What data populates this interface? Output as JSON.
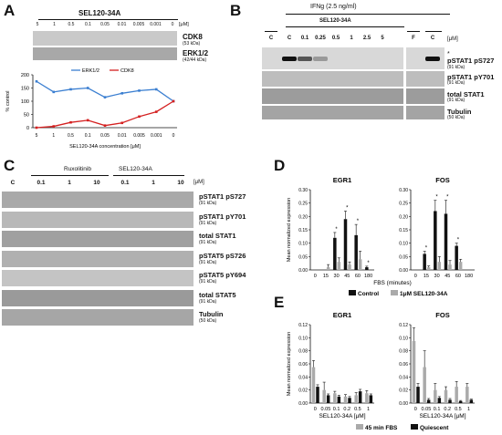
{
  "panels": {
    "A": {
      "label": "A",
      "header": "SEL120-34A",
      "unit": "[μM]",
      "conc": [
        "5",
        "1",
        "0.5",
        "0.1",
        "0.05",
        "0.01",
        "0.005",
        "0.001",
        "0"
      ],
      "bands": [
        {
          "name": "CDK8",
          "kda": "(53 kDa)"
        },
        {
          "name": "ERK1/2",
          "kda": "(42/44 kDa)"
        }
      ],
      "chart": {
        "ylabel": "% control",
        "xlabel": "SEL120-34A concentration [μM]",
        "legend": [
          "ERK1/2",
          "CDK8"
        ],
        "yticks": [
          "0",
          "50",
          "100",
          "150",
          "200"
        ]
      }
    },
    "B": {
      "label": "B",
      "treatment": "IFNg (2.5 ng/ml)",
      "header": "SEL120-34A",
      "unit": "[μM]",
      "lanes": [
        "C",
        "C",
        "0.1",
        "0.25",
        "0.5",
        "1",
        "2.5",
        "5",
        "F",
        "C"
      ],
      "asterisk": "*",
      "bands": [
        {
          "name": "pSTAT1 pS727",
          "kda": "(91 kDa)"
        },
        {
          "name": "pSTAT1 pY701",
          "kda": "(91 kDa)"
        },
        {
          "name": "total STAT1",
          "kda": "(91 kDa)"
        },
        {
          "name": "Tubulin",
          "kda": "(50 kDa)"
        }
      ]
    },
    "C": {
      "label": "C",
      "group1": "Ruxolitinib",
      "group2": "SEL120-34A",
      "unit": "[μM]",
      "lanes": [
        "C",
        "0.1",
        "1",
        "10",
        "0.1",
        "1",
        "10"
      ],
      "bands": [
        {
          "name": "pSTAT1 pS727",
          "kda": "(91 kDa)"
        },
        {
          "name": "pSTAT1 pY701",
          "kda": "(91 kDa)"
        },
        {
          "name": "total STAT1",
          "kda": "(91 kDa)"
        },
        {
          "name": "pSTAT5 pS726",
          "kda": "(91 kDa)"
        },
        {
          "name": "pSTAT5 pY694",
          "kda": "(91 kDa)"
        },
        {
          "name": "total STAT5",
          "kda": "(91 kDa)"
        },
        {
          "name": "Tubulin",
          "kda": "(50 kDa)"
        }
      ]
    },
    "D": {
      "label": "D",
      "ylabel": "Mean normalized expression",
      "xlabel": "FBS (minutes)",
      "legend": [
        "Control",
        "1μM SEL120-34A"
      ],
      "yticks": [
        "0.00",
        "0.05",
        "0.10",
        "0.15",
        "0.20",
        "0.25",
        "0.30"
      ]
    },
    "E": {
      "label": "E",
      "ylabel": "Mean normalized expression",
      "xlabel": "SEL120-34A [μM]",
      "legend": [
        "45 min FBS",
        "Quiescent"
      ],
      "yticks": [
        "0.00",
        "0.02",
        "0.04",
        "0.06",
        "0.08",
        "0.10",
        "0.12"
      ]
    }
  },
  "chart_data": [
    {
      "type": "line",
      "panel": "A",
      "categories": [
        "5",
        "1",
        "0.5",
        "0.1",
        "0.05",
        "0.01",
        "0.005",
        "0.001",
        "0"
      ],
      "series": [
        {
          "name": "ERK1/2",
          "color": "#3b7fd1",
          "values": [
            175,
            135,
            145,
            150,
            115,
            130,
            140,
            145,
            100
          ]
        },
        {
          "name": "CDK8",
          "color": "#d42020",
          "values": [
            0,
            5,
            20,
            28,
            8,
            18,
            42,
            60,
            100
          ]
        }
      ],
      "xlabel": "SEL120-34A concentration [μM]",
      "ylabel": "% control",
      "ylim": [
        0,
        200
      ]
    },
    {
      "type": "bar",
      "panel": "D",
      "title": "EGR1",
      "categories": [
        "0",
        "15",
        "30",
        "45",
        "60",
        "180"
      ],
      "series": [
        {
          "name": "Control",
          "color": "#111111",
          "values": [
            0.0,
            0.0,
            0.12,
            0.19,
            0.13,
            0.01
          ]
        },
        {
          "name": "1μM SEL120-34A",
          "color": "#aaaaaa",
          "values": [
            0.0,
            0.01,
            0.03,
            0.02,
            0.04,
            0.0
          ]
        }
      ],
      "errors": [
        [
          0,
          0,
          0.02,
          0.03,
          0.04,
          0.004
        ],
        [
          0,
          0.01,
          0.015,
          0.01,
          0.03,
          0
        ]
      ],
      "significance": [
        "",
        "",
        "*",
        "*",
        "*",
        "*"
      ],
      "xlabel": "FBS (minutes)",
      "ylabel": "Mean normalized expression",
      "ylim": [
        0,
        0.3
      ]
    },
    {
      "type": "bar",
      "panel": "D",
      "title": "FOS",
      "categories": [
        "0",
        "15",
        "30",
        "45",
        "60",
        "180"
      ],
      "series": [
        {
          "name": "Control",
          "color": "#111111",
          "values": [
            0.0,
            0.06,
            0.22,
            0.21,
            0.09,
            0.0
          ]
        },
        {
          "name": "1μM SEL120-34A",
          "color": "#aaaaaa",
          "values": [
            0.0,
            0.01,
            0.03,
            0.02,
            0.03,
            0.0
          ]
        }
      ],
      "errors": [
        [
          0,
          0.01,
          0.04,
          0.05,
          0.01,
          0
        ],
        [
          0,
          0.005,
          0.02,
          0.015,
          0.01,
          0
        ]
      ],
      "significance": [
        "",
        "*",
        "*",
        "*",
        "*",
        ""
      ],
      "xlabel": "FBS (minutes)",
      "ylabel": "",
      "ylim": [
        0,
        0.3
      ]
    },
    {
      "type": "bar",
      "panel": "E",
      "title": "EGR1",
      "categories": [
        "0",
        "0.05",
        "0.1",
        "0.2",
        "0.5",
        "1"
      ],
      "series": [
        {
          "name": "45 min FBS",
          "color": "#aaaaaa",
          "values": [
            0.055,
            0.02,
            0.015,
            0.01,
            0.012,
            0.015
          ]
        },
        {
          "name": "Quiescent",
          "color": "#111111",
          "values": [
            0.025,
            0.012,
            0.01,
            0.008,
            0.018,
            0.012
          ]
        }
      ],
      "errors": [
        [
          0.01,
          0.012,
          0.003,
          0.003,
          0.004,
          0.004
        ],
        [
          0.003,
          0.002,
          0.002,
          0.002,
          0.003,
          0.002
        ]
      ],
      "xlabel": "SEL120-34A [μM]",
      "ylabel": "Mean normalized expression",
      "ylim": [
        0,
        0.12
      ]
    },
    {
      "type": "bar",
      "panel": "E",
      "title": "FOS",
      "categories": [
        "0",
        "0.05",
        "0.1",
        "0.2",
        "0.5",
        "1"
      ],
      "series": [
        {
          "name": "45 min FBS",
          "color": "#aaaaaa",
          "values": [
            0.095,
            0.055,
            0.02,
            0.02,
            0.025,
            0.025
          ]
        },
        {
          "name": "Quiescent",
          "color": "#111111",
          "values": [
            0.025,
            0.005,
            0.008,
            0.005,
            0.003,
            0.005
          ]
        }
      ],
      "errors": [
        [
          0.02,
          0.025,
          0.01,
          0.005,
          0.008,
          0.005
        ],
        [
          0.005,
          0.002,
          0.002,
          0.002,
          0.001,
          0.001
        ]
      ],
      "xlabel": "SEL120-34A [μM]",
      "ylabel": "",
      "ylim": [
        0,
        0.12
      ]
    }
  ]
}
